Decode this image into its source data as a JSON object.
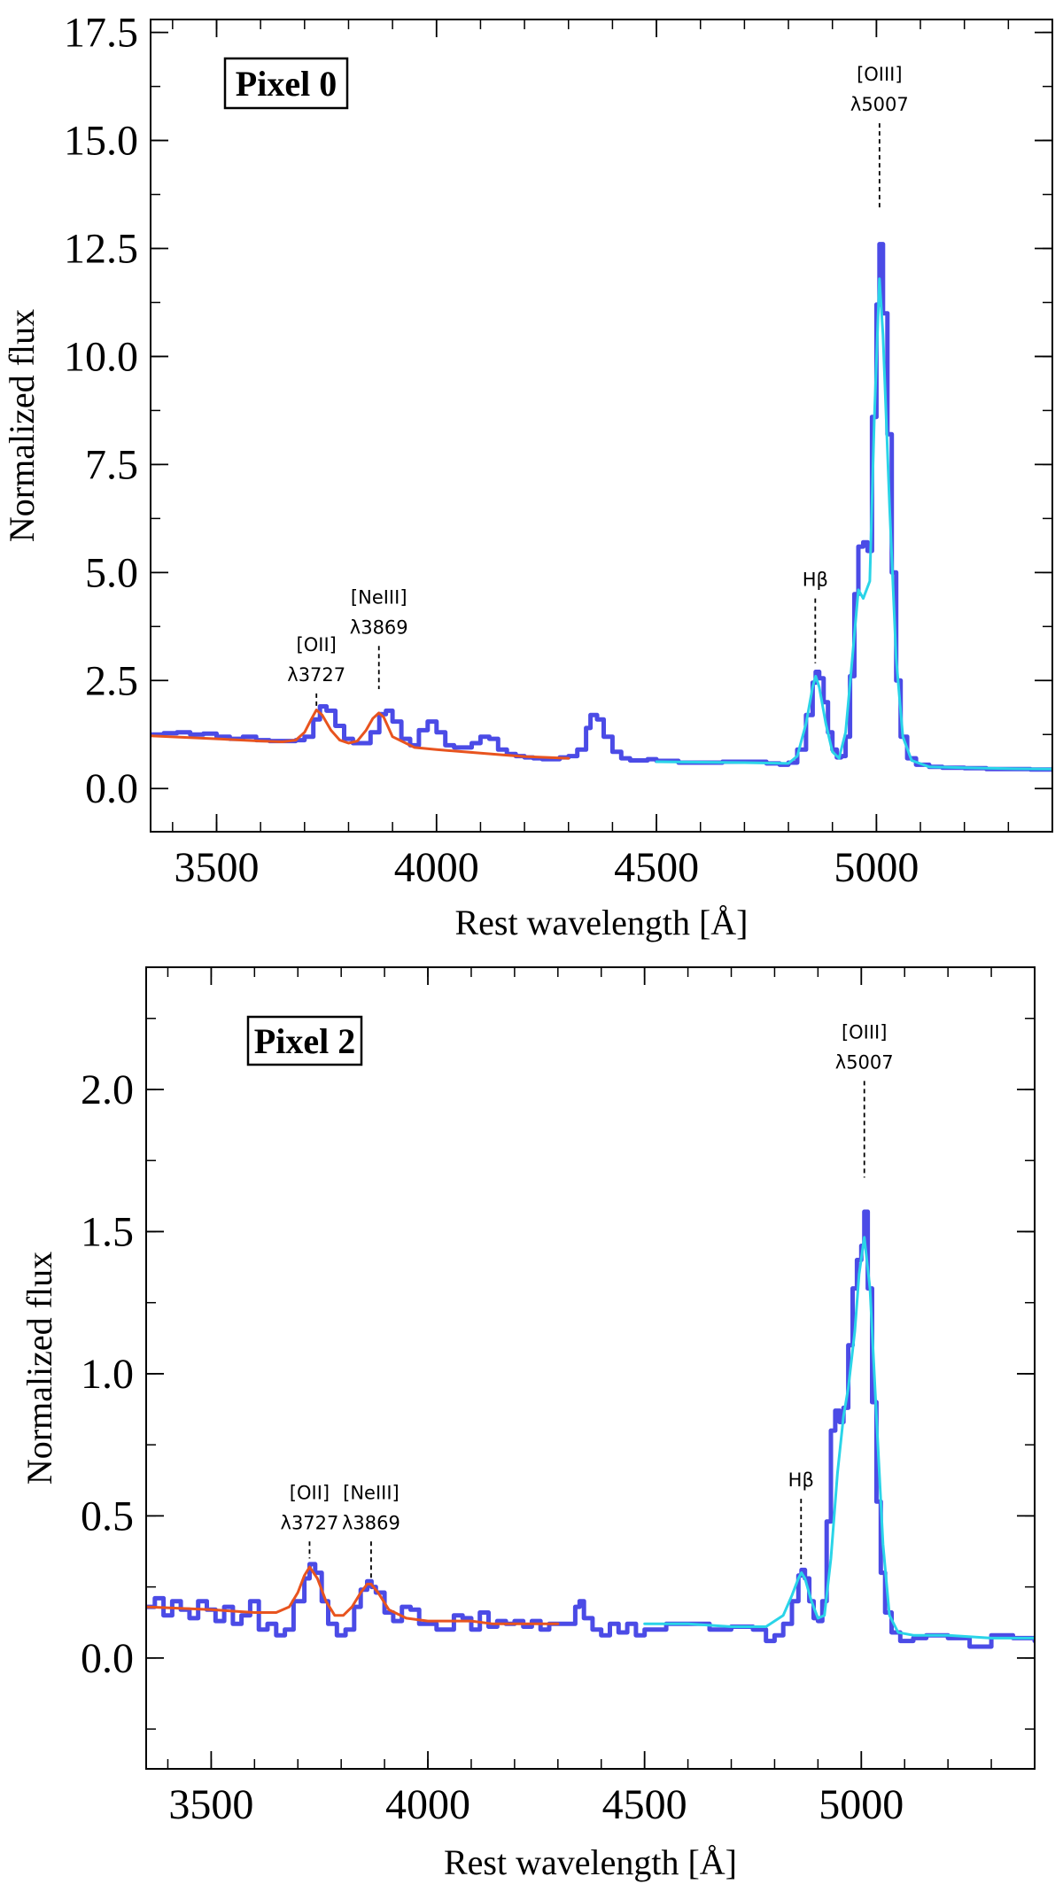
{
  "chart_data": [
    {
      "type": "line",
      "panel_label": "Pixel 0",
      "xlabel": "Rest wavelength [Å]",
      "ylabel": "Normalized flux",
      "xlim": [
        3350,
        5400
      ],
      "ylim": [
        -1.0,
        17.8
      ],
      "xticks": [
        3500,
        4000,
        4500,
        5000
      ],
      "xtick_labels": [
        "3500",
        "4000",
        "4500",
        "5000"
      ],
      "yticks": [
        0.0,
        2.5,
        5.0,
        7.5,
        10.0,
        12.5,
        15.0,
        17.5
      ],
      "ytick_labels": [
        "0.0",
        "2.5",
        "5.0",
        "7.5",
        "10.0",
        "12.5",
        "15.0",
        "17.5"
      ],
      "series": [
        {
          "role": "observed spectrum",
          "color": "#4b4be6",
          "x": [
            3350,
            3380,
            3410,
            3440,
            3470,
            3500,
            3530,
            3560,
            3590,
            3620,
            3650,
            3680,
            3700,
            3720,
            3735,
            3750,
            3770,
            3790,
            3810,
            3830,
            3850,
            3870,
            3885,
            3900,
            3920,
            3940,
            3960,
            3980,
            4000,
            4020,
            4040,
            4060,
            4080,
            4100,
            4120,
            4140,
            4160,
            4180,
            4200,
            4220,
            4240,
            4260,
            4280,
            4300,
            4320,
            4340,
            4350,
            4365,
            4380,
            4400,
            4420,
            4440,
            4460,
            4480,
            4500,
            4550,
            4600,
            4650,
            4700,
            4750,
            4780,
            4800,
            4820,
            4840,
            4855,
            4862,
            4870,
            4880,
            4890,
            4900,
            4910,
            4920,
            4930,
            4940,
            4950,
            4959,
            4970,
            4980,
            4990,
            5000,
            5007,
            5015,
            5025,
            5035,
            5045,
            5055,
            5070,
            5090,
            5120,
            5150,
            5200,
            5250,
            5300,
            5350,
            5400
          ],
          "y": [
            1.25,
            1.28,
            1.3,
            1.25,
            1.27,
            1.2,
            1.15,
            1.2,
            1.12,
            1.1,
            1.1,
            1.12,
            1.2,
            1.6,
            1.9,
            1.8,
            1.45,
            1.15,
            1.05,
            1.05,
            1.3,
            1.72,
            1.8,
            1.55,
            1.15,
            1.0,
            1.35,
            1.55,
            1.3,
            1.0,
            0.95,
            0.95,
            1.05,
            1.2,
            1.15,
            0.9,
            0.8,
            0.75,
            0.72,
            0.7,
            0.68,
            0.68,
            0.72,
            0.75,
            0.9,
            1.4,
            1.7,
            1.6,
            1.2,
            0.85,
            0.7,
            0.65,
            0.65,
            0.68,
            0.64,
            0.6,
            0.6,
            0.62,
            0.62,
            0.58,
            0.55,
            0.6,
            0.9,
            1.7,
            2.45,
            2.7,
            2.55,
            2.0,
            1.3,
            0.9,
            0.72,
            0.75,
            1.2,
            2.6,
            4.5,
            5.6,
            5.7,
            5.5,
            8.6,
            11.2,
            12.6,
            11.0,
            8.2,
            5.0,
            2.5,
            1.2,
            0.7,
            0.55,
            0.5,
            0.48,
            0.47,
            0.45,
            0.45,
            0.44,
            0.43
          ]
        },
        {
          "role": "model fit (blue side)",
          "color": "#e8541f",
          "x": [
            3350,
            3500,
            3600,
            3650,
            3680,
            3700,
            3715,
            3727,
            3740,
            3760,
            3780,
            3800,
            3820,
            3840,
            3855,
            3869,
            3880,
            3900,
            3950,
            4000,
            4050,
            4100,
            4150,
            4200,
            4300
          ],
          "y": [
            1.22,
            1.15,
            1.1,
            1.08,
            1.12,
            1.3,
            1.6,
            1.82,
            1.7,
            1.35,
            1.12,
            1.05,
            1.1,
            1.35,
            1.62,
            1.75,
            1.65,
            1.2,
            0.95,
            0.9,
            0.86,
            0.82,
            0.78,
            0.74,
            0.7
          ]
        },
        {
          "role": "model fit (red side)",
          "color": "#2ad4e8",
          "x": [
            4500,
            4600,
            4700,
            4800,
            4820,
            4840,
            4855,
            4862,
            4870,
            4885,
            4900,
            4915,
            4930,
            4945,
            4959,
            4970,
            4985,
            4995,
            5007,
            5015,
            5030,
            5045,
            5060,
            5080,
            5120,
            5200,
            5300,
            5400
          ],
          "y": [
            0.62,
            0.61,
            0.6,
            0.58,
            0.75,
            1.5,
            2.35,
            2.6,
            2.35,
            1.5,
            0.85,
            0.7,
            1.3,
            3.0,
            4.6,
            4.4,
            4.8,
            8.5,
            11.8,
            10.5,
            6.5,
            3.0,
            1.2,
            0.65,
            0.5,
            0.48,
            0.46,
            0.45
          ]
        }
      ],
      "annotations": [
        {
          "lines": [
            "[OII]",
            "λ3727"
          ],
          "x": 3727,
          "y_top": 2.2,
          "y_bottom": 1.9
        },
        {
          "lines": [
            "[NeIII]",
            "λ3869"
          ],
          "x": 3869,
          "y_top": 3.3,
          "y_bottom": 2.3
        },
        {
          "lines": [
            "Hβ"
          ],
          "x": 4861,
          "y_top": 4.4,
          "y_bottom": 2.9
        },
        {
          "lines": [
            "[OIII]",
            "λ5007"
          ],
          "x": 5007,
          "y_top": 15.4,
          "y_bottom": 13.4
        }
      ]
    },
    {
      "type": "line",
      "panel_label": "Pixel 2",
      "xlabel": "Rest wavelength [Å]",
      "ylabel": "Normalized flux",
      "xlim": [
        3350,
        5400
      ],
      "ylim": [
        -0.39,
        2.43
      ],
      "xticks": [
        3500,
        4000,
        4500,
        5000
      ],
      "xtick_labels": [
        "3500",
        "4000",
        "4500",
        "5000"
      ],
      "yticks": [
        0.0,
        0.5,
        1.0,
        1.5,
        2.0
      ],
      "ytick_labels": [
        "0.0",
        "0.5",
        "1.0",
        "1.5",
        "2.0"
      ],
      "series": [
        {
          "role": "observed spectrum",
          "color": "#4b4be6",
          "x": [
            3350,
            3370,
            3390,
            3410,
            3430,
            3450,
            3470,
            3490,
            3510,
            3530,
            3550,
            3570,
            3590,
            3610,
            3630,
            3650,
            3670,
            3690,
            3705,
            3715,
            3727,
            3740,
            3755,
            3770,
            3790,
            3810,
            3830,
            3845,
            3860,
            3870,
            3880,
            3900,
            3920,
            3940,
            3960,
            3980,
            4000,
            4020,
            4040,
            4060,
            4080,
            4100,
            4120,
            4140,
            4160,
            4180,
            4200,
            4220,
            4240,
            4260,
            4280,
            4300,
            4320,
            4340,
            4350,
            4360,
            4380,
            4400,
            4420,
            4440,
            4460,
            4480,
            4500,
            4550,
            4600,
            4650,
            4700,
            4750,
            4780,
            4800,
            4820,
            4840,
            4855,
            4862,
            4870,
            4880,
            4890,
            4900,
            4910,
            4920,
            4930,
            4940,
            4950,
            4959,
            4970,
            4980,
            4990,
            5000,
            5007,
            5015,
            5025,
            5035,
            5045,
            5055,
            5070,
            5090,
            5120,
            5150,
            5200,
            5250,
            5300,
            5350,
            5400
          ],
          "y": [
            0.18,
            0.21,
            0.15,
            0.2,
            0.17,
            0.14,
            0.2,
            0.17,
            0.13,
            0.18,
            0.12,
            0.15,
            0.2,
            0.1,
            0.12,
            0.08,
            0.1,
            0.2,
            0.2,
            0.28,
            0.33,
            0.3,
            0.2,
            0.12,
            0.08,
            0.1,
            0.18,
            0.24,
            0.27,
            0.25,
            0.23,
            0.16,
            0.13,
            0.18,
            0.17,
            0.12,
            0.12,
            0.1,
            0.1,
            0.15,
            0.14,
            0.1,
            0.16,
            0.11,
            0.13,
            0.12,
            0.13,
            0.11,
            0.13,
            0.1,
            0.12,
            0.12,
            0.12,
            0.18,
            0.2,
            0.14,
            0.1,
            0.08,
            0.12,
            0.09,
            0.12,
            0.08,
            0.1,
            0.12,
            0.12,
            0.1,
            0.11,
            0.1,
            0.06,
            0.08,
            0.12,
            0.2,
            0.29,
            0.31,
            0.28,
            0.2,
            0.14,
            0.13,
            0.2,
            0.48,
            0.8,
            0.87,
            0.83,
            0.88,
            1.1,
            1.3,
            1.4,
            1.45,
            1.57,
            1.3,
            0.9,
            0.55,
            0.3,
            0.16,
            0.09,
            0.06,
            0.07,
            0.08,
            0.07,
            0.04,
            0.08,
            0.07,
            0.06
          ]
        },
        {
          "role": "model fit (blue side)",
          "color": "#e8541f",
          "x": [
            3350,
            3500,
            3600,
            3650,
            3680,
            3700,
            3715,
            3727,
            3745,
            3765,
            3785,
            3805,
            3825,
            3845,
            3860,
            3869,
            3885,
            3910,
            3950,
            4000,
            4050,
            4100,
            4150,
            4200,
            4300
          ],
          "y": [
            0.18,
            0.17,
            0.16,
            0.16,
            0.18,
            0.23,
            0.29,
            0.32,
            0.28,
            0.2,
            0.15,
            0.15,
            0.18,
            0.23,
            0.26,
            0.26,
            0.23,
            0.17,
            0.14,
            0.13,
            0.13,
            0.13,
            0.12,
            0.12,
            0.12
          ]
        },
        {
          "role": "model fit (red side)",
          "color": "#2ad4e8",
          "x": [
            4500,
            4600,
            4700,
            4780,
            4820,
            4840,
            4855,
            4862,
            4870,
            4885,
            4900,
            4915,
            4930,
            4945,
            4959,
            4970,
            4985,
            4995,
            5007,
            5020,
            5035,
            5050,
            5065,
            5085,
            5120,
            5200,
            5300,
            5400
          ],
          "y": [
            0.12,
            0.12,
            0.11,
            0.11,
            0.15,
            0.22,
            0.28,
            0.3,
            0.28,
            0.2,
            0.14,
            0.15,
            0.35,
            0.65,
            0.85,
            0.95,
            1.15,
            1.35,
            1.48,
            1.3,
            0.85,
            0.4,
            0.15,
            0.09,
            0.08,
            0.08,
            0.07,
            0.07
          ]
        }
      ],
      "annotations": [
        {
          "lines": [
            "[OII]",
            "λ3727"
          ],
          "x": 3727,
          "y_top": 0.41,
          "y_bottom": 0.35
        },
        {
          "lines": [
            "[NeIII]",
            "λ3869"
          ],
          "x": 3869,
          "y_top": 0.41,
          "y_bottom": 0.28
        },
        {
          "lines": [
            "Hβ"
          ],
          "x": 4861,
          "y_top": 0.56,
          "y_bottom": 0.33
        },
        {
          "lines": [
            "[OIII]",
            "λ5007"
          ],
          "x": 5007,
          "y_top": 2.03,
          "y_bottom": 1.69
        }
      ]
    }
  ]
}
